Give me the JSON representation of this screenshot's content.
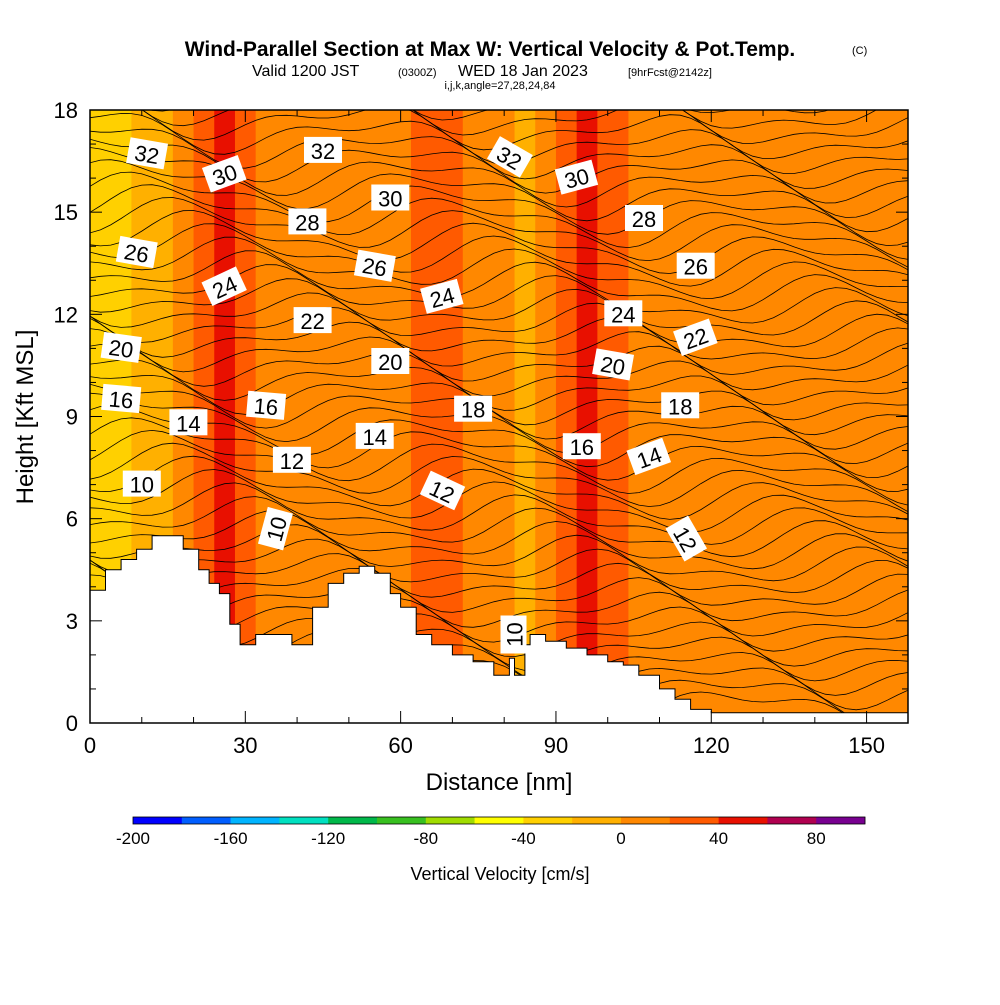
{
  "header": {
    "title": "Wind-Parallel Section at Max W: Vertical Velocity & Pot.Temp.",
    "copyright": "(C)",
    "valid_prefix": "Valid 1200 JST",
    "valid_utc": "(0300Z)",
    "valid_date": "WED 18 Jan 2023",
    "forecast": "[9hrFcst@2142z]",
    "indices": "i,j,k,angle=27,28,24,84"
  },
  "chart_data": {
    "type": "heatmap",
    "xlabel": "Distance [nm]",
    "ylabel": "Height [Kft MSL]",
    "xlim": [
      0,
      158
    ],
    "ylim": [
      0,
      18
    ],
    "x_ticks": [
      0,
      30,
      60,
      90,
      120,
      150
    ],
    "y_ticks": [
      0,
      3,
      6,
      9,
      12,
      15,
      18
    ],
    "colorbar": {
      "title": "Vertical Velocity [cm/s]",
      "range": [
        -200,
        100
      ],
      "step": 20,
      "tick_values": [
        -200,
        -160,
        -120,
        -80,
        -40,
        0,
        40,
        80
      ],
      "colors": [
        "#0000ff",
        "#005eff",
        "#00b4ff",
        "#00e0c0",
        "#00b84a",
        "#38c020",
        "#a0dc00",
        "#ffff00",
        "#ffd000",
        "#ffb000",
        "#ff8800",
        "#ff5a00",
        "#e81000",
        "#b00050",
        "#780090"
      ]
    },
    "velocity_columns": [
      {
        "x": 0,
        "v": -40
      },
      {
        "x": 4,
        "v": -40
      },
      {
        "x": 8,
        "v": -10
      },
      {
        "x": 16,
        "v": 10
      },
      {
        "x": 20,
        "v": 30
      },
      {
        "x": 24,
        "v": 40
      },
      {
        "x": 28,
        "v": 30
      },
      {
        "x": 32,
        "v": 10
      },
      {
        "x": 38,
        "v": 0
      },
      {
        "x": 44,
        "v": 10
      },
      {
        "x": 50,
        "v": 0
      },
      {
        "x": 56,
        "v": 10
      },
      {
        "x": 62,
        "v": 30
      },
      {
        "x": 68,
        "v": 30
      },
      {
        "x": 72,
        "v": 10
      },
      {
        "x": 78,
        "v": 0
      },
      {
        "x": 82,
        "v": -10
      },
      {
        "x": 86,
        "v": 10
      },
      {
        "x": 90,
        "v": 25
      },
      {
        "x": 94,
        "v": 40
      },
      {
        "x": 98,
        "v": 20
      },
      {
        "x": 104,
        "v": 10
      },
      {
        "x": 110,
        "v": 10
      },
      {
        "x": 116,
        "v": 10
      },
      {
        "x": 124,
        "v": 0
      },
      {
        "x": 132,
        "v": 10
      },
      {
        "x": 140,
        "v": 10
      },
      {
        "x": 146,
        "v": 0
      },
      {
        "x": 152,
        "v": 10
      },
      {
        "x": 158,
        "v": 0
      }
    ],
    "terrain": {
      "x": [
        0,
        3,
        3,
        6,
        6,
        9,
        9,
        12,
        12,
        18,
        18,
        21,
        21,
        23,
        23,
        25,
        25,
        27,
        27,
        29,
        29,
        32,
        32,
        39,
        39,
        43,
        43,
        46,
        46,
        49,
        49,
        52,
        52,
        55,
        55,
        58,
        58,
        60,
        60,
        63,
        63,
        66,
        66,
        70,
        70,
        74,
        74,
        78,
        78,
        81,
        81,
        82,
        82,
        84,
        84,
        85,
        85,
        88,
        88,
        92,
        92,
        96,
        96,
        100,
        100,
        103,
        103,
        106,
        106,
        110,
        110,
        113,
        113,
        116,
        116,
        120,
        120,
        125,
        125,
        158
      ],
      "y": [
        3.9,
        3.9,
        4.5,
        4.5,
        4.8,
        4.8,
        5.1,
        5.1,
        5.5,
        5.5,
        5.1,
        5.1,
        4.5,
        4.5,
        4.1,
        4.1,
        3.8,
        3.8,
        2.9,
        2.9,
        2.3,
        2.3,
        2.6,
        2.6,
        2.3,
        2.3,
        3.4,
        3.4,
        4.1,
        4.1,
        4.4,
        4.4,
        4.6,
        4.6,
        4.4,
        4.4,
        3.8,
        3.8,
        3.4,
        3.4,
        2.6,
        2.6,
        2.3,
        2.3,
        2.0,
        2.0,
        1.8,
        1.8,
        1.4,
        1.4,
        1.9,
        1.9,
        1.4,
        1.4,
        2.3,
        2.3,
        2.6,
        2.6,
        2.4,
        2.4,
        2.2,
        2.2,
        2.0,
        2.0,
        1.8,
        1.8,
        1.7,
        1.7,
        1.4,
        1.4,
        1.0,
        1.0,
        0.7,
        0.7,
        0.4,
        0.4,
        0.3,
        0.3,
        0.3,
        0.3
      ]
    },
    "isentrope_labels": [
      {
        "text": "32",
        "x": 11,
        "y": 16.7,
        "angle": 10
      },
      {
        "text": "30",
        "x": 26,
        "y": 16.1,
        "angle": -20
      },
      {
        "text": "32",
        "x": 45,
        "y": 16.8,
        "angle": 0
      },
      {
        "text": "30",
        "x": 58,
        "y": 15.4,
        "angle": 0
      },
      {
        "text": "32",
        "x": 81,
        "y": 16.6,
        "angle": 30
      },
      {
        "text": "30",
        "x": 94,
        "y": 16.0,
        "angle": -15
      },
      {
        "text": "28",
        "x": 42,
        "y": 14.7,
        "angle": 0
      },
      {
        "text": "28",
        "x": 107,
        "y": 14.8,
        "angle": 0
      },
      {
        "text": "26",
        "x": 9,
        "y": 13.8,
        "angle": 10
      },
      {
        "text": "26",
        "x": 55,
        "y": 13.4,
        "angle": 10
      },
      {
        "text": "26",
        "x": 117,
        "y": 13.4,
        "angle": 0
      },
      {
        "text": "24",
        "x": 26,
        "y": 12.8,
        "angle": -25
      },
      {
        "text": "24",
        "x": 68,
        "y": 12.5,
        "angle": -15
      },
      {
        "text": "24",
        "x": 103,
        "y": 12.0,
        "angle": 0
      },
      {
        "text": "22",
        "x": 43,
        "y": 11.8,
        "angle": 0
      },
      {
        "text": "22",
        "x": 117,
        "y": 11.3,
        "angle": -20
      },
      {
        "text": "20",
        "x": 6,
        "y": 11.0,
        "angle": 8
      },
      {
        "text": "20",
        "x": 58,
        "y": 10.6,
        "angle": 0
      },
      {
        "text": "20",
        "x": 101,
        "y": 10.5,
        "angle": 10
      },
      {
        "text": "16",
        "x": 6,
        "y": 9.5,
        "angle": 5
      },
      {
        "text": "16",
        "x": 34,
        "y": 9.3,
        "angle": 5
      },
      {
        "text": "18",
        "x": 74,
        "y": 9.2,
        "angle": 0
      },
      {
        "text": "18",
        "x": 114,
        "y": 9.3,
        "angle": 0
      },
      {
        "text": "14",
        "x": 19,
        "y": 8.8,
        "angle": 0
      },
      {
        "text": "14",
        "x": 55,
        "y": 8.4,
        "angle": 0
      },
      {
        "text": "14",
        "x": 108,
        "y": 7.8,
        "angle": -20
      },
      {
        "text": "16",
        "x": 95,
        "y": 8.1,
        "angle": 0
      },
      {
        "text": "12",
        "x": 39,
        "y": 7.7,
        "angle": 0
      },
      {
        "text": "12",
        "x": 68,
        "y": 6.8,
        "angle": 25
      },
      {
        "text": "12",
        "x": 115,
        "y": 5.4,
        "angle": 60
      },
      {
        "text": "10",
        "x": 10,
        "y": 7.0,
        "angle": 0
      },
      {
        "text": "10",
        "x": 36,
        "y": 5.7,
        "angle": -75
      },
      {
        "text": "10",
        "x": 82,
        "y": 2.6,
        "angle": -90
      }
    ]
  }
}
